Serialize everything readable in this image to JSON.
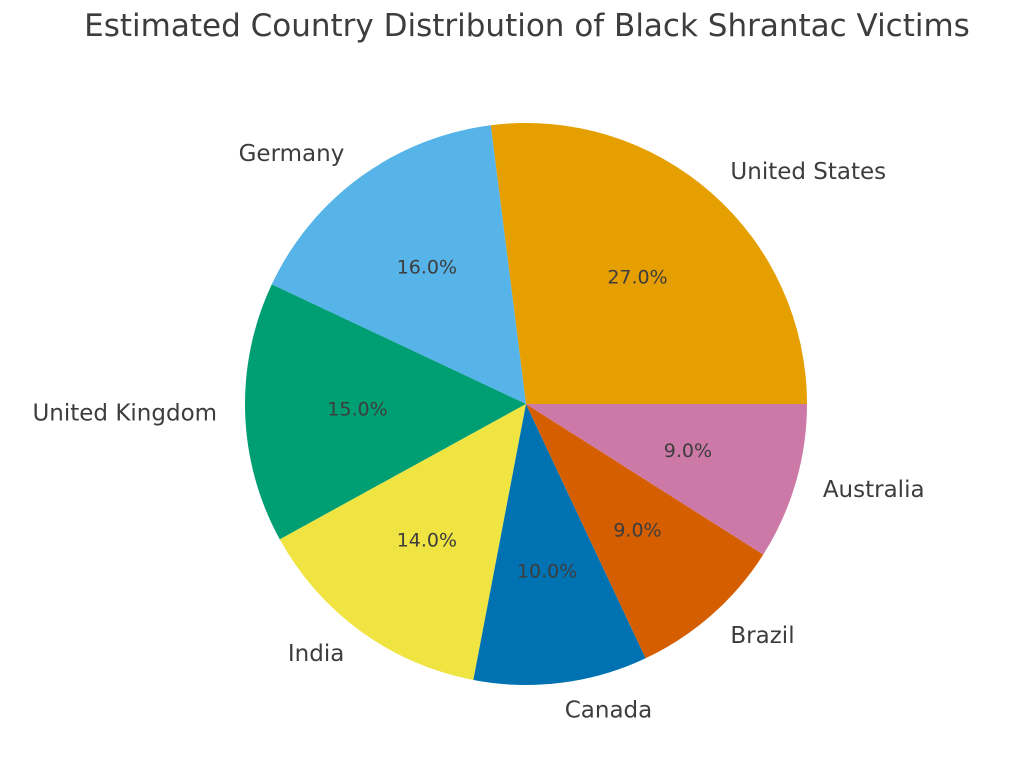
{
  "chart_data": {
    "type": "pie",
    "title": "Estimated Country Distribution of Black Shrantac Victims",
    "categories": [
      "United States",
      "Germany",
      "United Kingdom",
      "India",
      "Canada",
      "Brazil",
      "Australia"
    ],
    "values": [
      27.0,
      16.0,
      15.0,
      14.0,
      10.0,
      9.0,
      9.0
    ],
    "value_labels": [
      "27.0%",
      "16.0%",
      "15.0%",
      "14.0%",
      "10.0%",
      "9.0%",
      "9.0%"
    ],
    "colors": [
      "#E69F00",
      "#56B4E9",
      "#009E73",
      "#F0E442",
      "#0072B2",
      "#D55E00",
      "#CC79A7"
    ],
    "start_angle_deg": 0,
    "direction": "counterclockwise",
    "legend": "none"
  }
}
